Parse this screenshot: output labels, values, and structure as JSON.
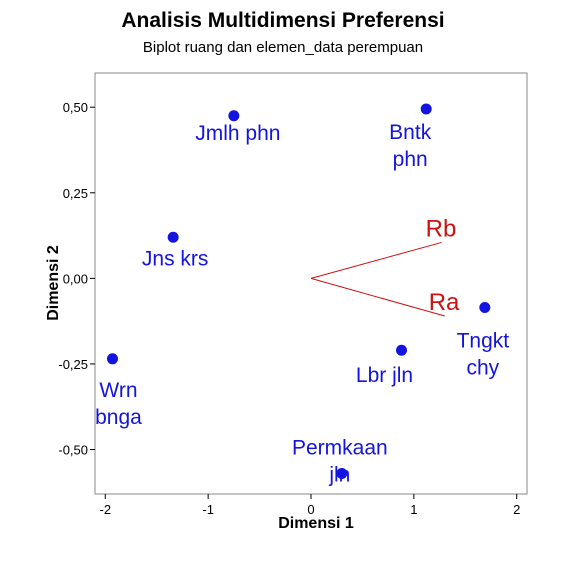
{
  "chart_data": {
    "type": "scatter",
    "title": "Analisis Multidimensi Preferensi",
    "subtitle": "Biplot ruang dan elemen_data perempuan",
    "xlabel": "Dimensi 1",
    "ylabel": "Dimensi 2",
    "xlim": [
      -2.1,
      2.1
    ],
    "ylim": [
      -0.63,
      0.6
    ],
    "x_ticks": [
      -2,
      -1,
      0,
      1,
      2
    ],
    "x_tick_labels": [
      "-2",
      "-1",
      "0",
      "1",
      "2"
    ],
    "y_ticks": [
      -0.5,
      -0.25,
      0,
      0.25,
      0.5
    ],
    "y_tick_labels": [
      "-0,50",
      "-0,25",
      "0,00",
      "0,25",
      "0,50"
    ],
    "grid": false,
    "point_color": "#1414e0",
    "vector_color": "#d01010",
    "points": [
      {
        "label_lines": [
          "Jmlh phn"
        ],
        "x": -0.75,
        "y": 0.475
      },
      {
        "label_lines": [
          "Bntk",
          "phn"
        ],
        "x": 1.12,
        "y": 0.495
      },
      {
        "label_lines": [
          "Jns krs"
        ],
        "x": -1.34,
        "y": 0.12
      },
      {
        "label_lines": [
          "Wrn",
          "bnga"
        ],
        "x": -1.93,
        "y": -0.235
      },
      {
        "label_lines": [
          "Lbr jln"
        ],
        "x": 0.88,
        "y": -0.21
      },
      {
        "label_lines": [
          "Tngkt",
          "chy"
        ],
        "x": 1.69,
        "y": -0.085
      },
      {
        "label_lines": [
          "Permkaan",
          "jln"
        ],
        "x": 0.3,
        "y": -0.57
      }
    ],
    "vectors": [
      {
        "name": "Rb",
        "x": 1.27,
        "y": 0.105
      },
      {
        "name": "Ra",
        "x": 1.3,
        "y": -0.11
      }
    ]
  }
}
